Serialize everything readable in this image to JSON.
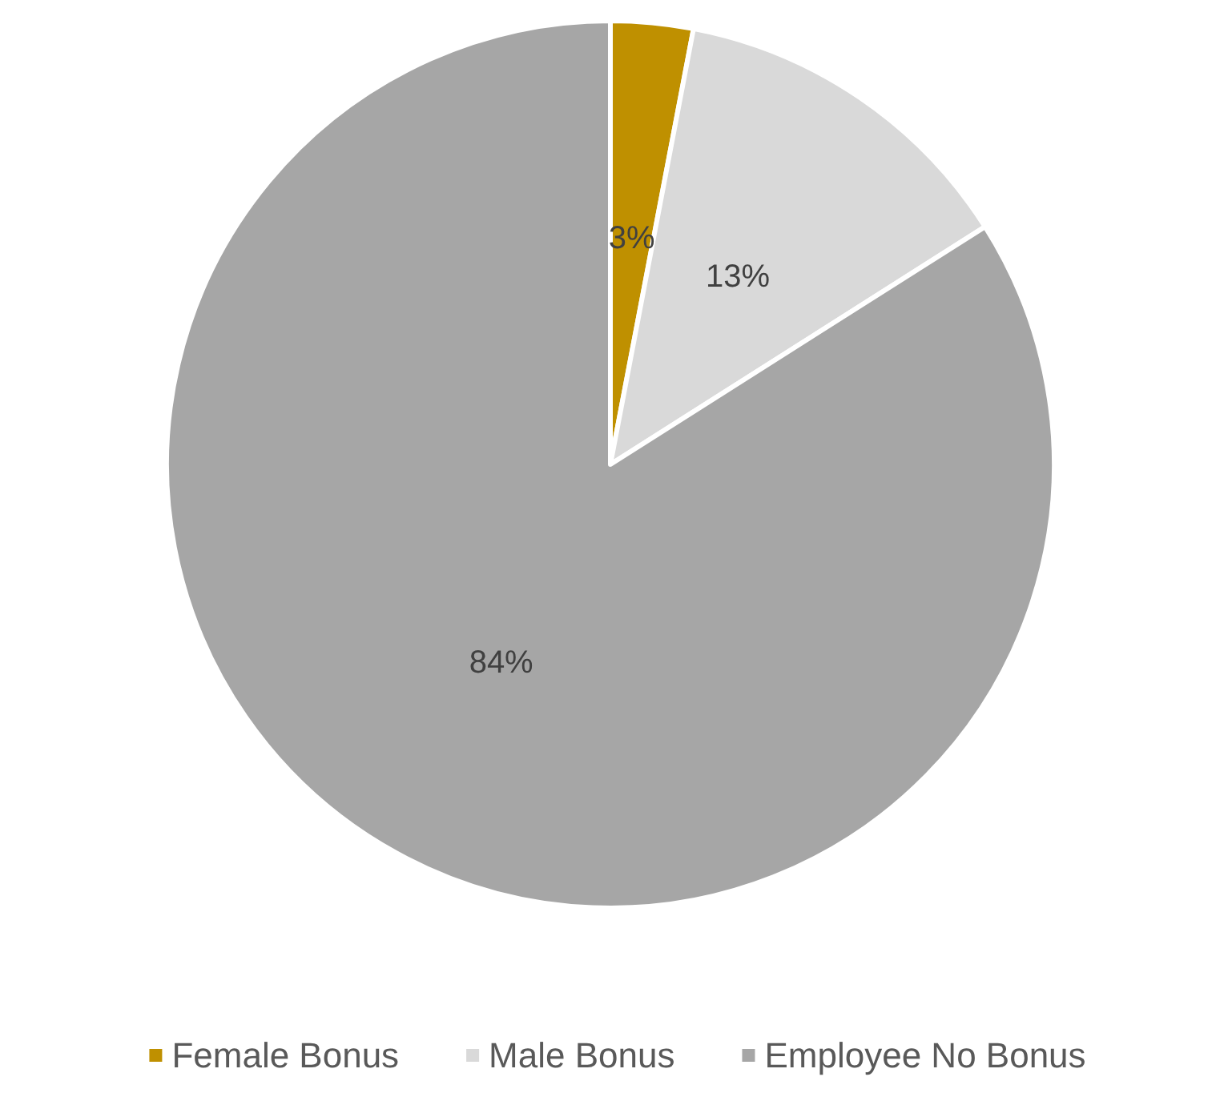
{
  "chart_data": {
    "type": "pie",
    "categories": [
      "Female Bonus",
      "Male Bonus",
      "Employee No Bonus"
    ],
    "values": [
      3,
      13,
      84
    ],
    "colors": [
      "#bf9000",
      "#d9d9d9",
      "#a6a6a6"
    ],
    "value_labels": [
      "3%",
      "13%",
      "84%"
    ],
    "legend": "bottom"
  }
}
